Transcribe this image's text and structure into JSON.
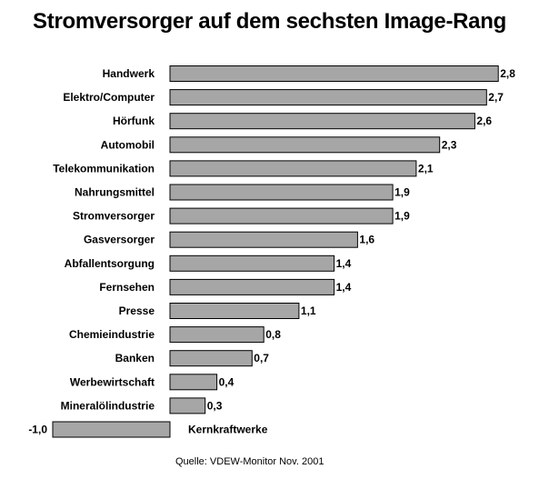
{
  "chart_data": {
    "type": "bar",
    "orientation": "horizontal",
    "title": "Stromversorger auf dem sechsten Image-Rang",
    "source": "Quelle: VDEW-Monitor Nov. 2001",
    "categories": [
      "Handwerk",
      "Elektro/Computer",
      "Hörfunk",
      "Automobil",
      "Telekommunikation",
      "Nahrungsmittel",
      "Stromversorger",
      "Gasversorger",
      "Abfallentsorgung",
      "Fernsehen",
      "Presse",
      "Chemieindustrie",
      "Banken",
      "Werbewirtschaft",
      "Mineralölindustrie",
      "Kernkraftwerke"
    ],
    "values": [
      2.8,
      2.7,
      2.6,
      2.3,
      2.1,
      1.9,
      1.9,
      1.6,
      1.4,
      1.4,
      1.1,
      0.8,
      0.7,
      0.4,
      0.3,
      -1.0
    ],
    "value_labels": [
      "2,8",
      "2,7",
      "2,6",
      "2,3",
      "2,1",
      "1,9",
      "1,9",
      "1,6",
      "1,4",
      "1,4",
      "1,1",
      "0,8",
      "0,7",
      "0,4",
      "0,3",
      "-1,0"
    ],
    "bar_color": "#a6a6a6",
    "bar_edge_color": "#000000",
    "grid": false,
    "legend": false
  }
}
